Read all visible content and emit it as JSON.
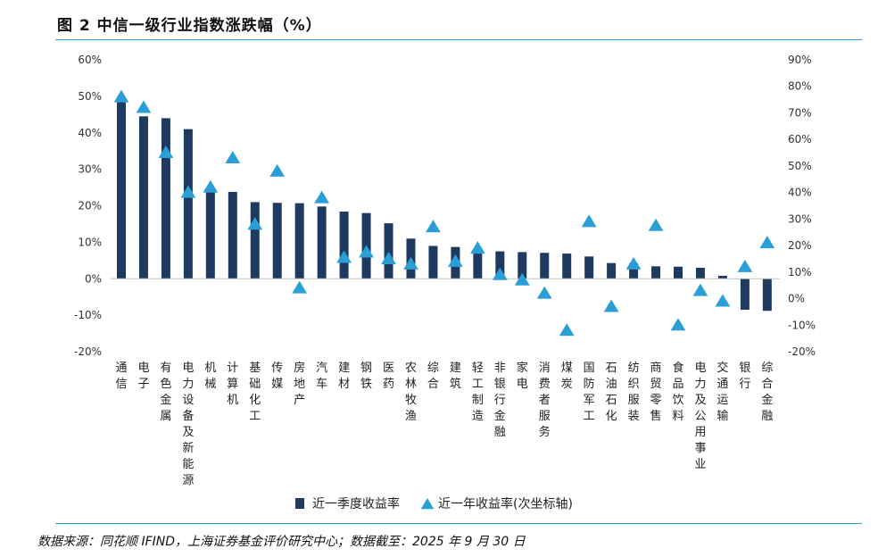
{
  "title": "图 2 中信一级行业指数涨跌幅（%）",
  "source": "数据来源：同花顺 IFIND，上海证券基金评价研究中心；数据截至：2025 年 9 月 30 日",
  "colors": {
    "bar": "#1f3a60",
    "marker": "#2a9fd6",
    "rule": "#2a9fd6"
  },
  "chart_data": {
    "type": "bar",
    "categories": [
      "通信",
      "电子",
      "有色金属",
      "电力设备及新能源",
      "机械",
      "计算机",
      "基础化工",
      "传媒",
      "房地产",
      "汽车",
      "建材",
      "钢铁",
      "医药",
      "农林牧渔",
      "综合",
      "建筑",
      "轻工制造",
      "非银行金融",
      "家电",
      "消费者服务",
      "煤炭",
      "国防军工",
      "石油石化",
      "纺织服装",
      "商贸零售",
      "食品饮料",
      "电力及公用事业",
      "交通运输",
      "银行",
      "综合金融"
    ],
    "series": [
      {
        "name": "近一季度收益率",
        "type": "bar",
        "axis": "left",
        "values": [
          49.5,
          44.5,
          44,
          41,
          24.5,
          23.8,
          21,
          20.8,
          20.7,
          19.8,
          18.4,
          18,
          15.2,
          11,
          9,
          8.7,
          8.3,
          7.5,
          7.3,
          7.1,
          6.9,
          6.1,
          4.3,
          4.2,
          3.4,
          3.3,
          3,
          0.8,
          -8.5,
          -8.8
        ]
      },
      {
        "name": "近一年收益率(次坐标轴)",
        "type": "scatter",
        "axis": "right",
        "values": [
          76,
          72,
          55,
          40,
          42,
          53,
          28,
          48,
          4,
          38,
          15.5,
          17.5,
          15,
          13,
          27,
          14,
          19,
          9,
          7,
          2,
          -12,
          29,
          -3,
          13,
          27.5,
          -10,
          3,
          -1,
          12,
          21
        ]
      }
    ],
    "y_left": {
      "ylim": [
        -20,
        60
      ],
      "ticks": [
        "-20%",
        "-10%",
        "0%",
        "10%",
        "20%",
        "30%",
        "40%",
        "50%",
        "60%"
      ]
    },
    "y_right": {
      "ylim": [
        -20,
        90
      ],
      "ticks": [
        "-20%",
        "-10%",
        "0%",
        "10%",
        "20%",
        "30%",
        "40%",
        "50%",
        "60%",
        "70%",
        "80%",
        "90%"
      ]
    },
    "grid": false,
    "legend_position": "bottom-center"
  }
}
